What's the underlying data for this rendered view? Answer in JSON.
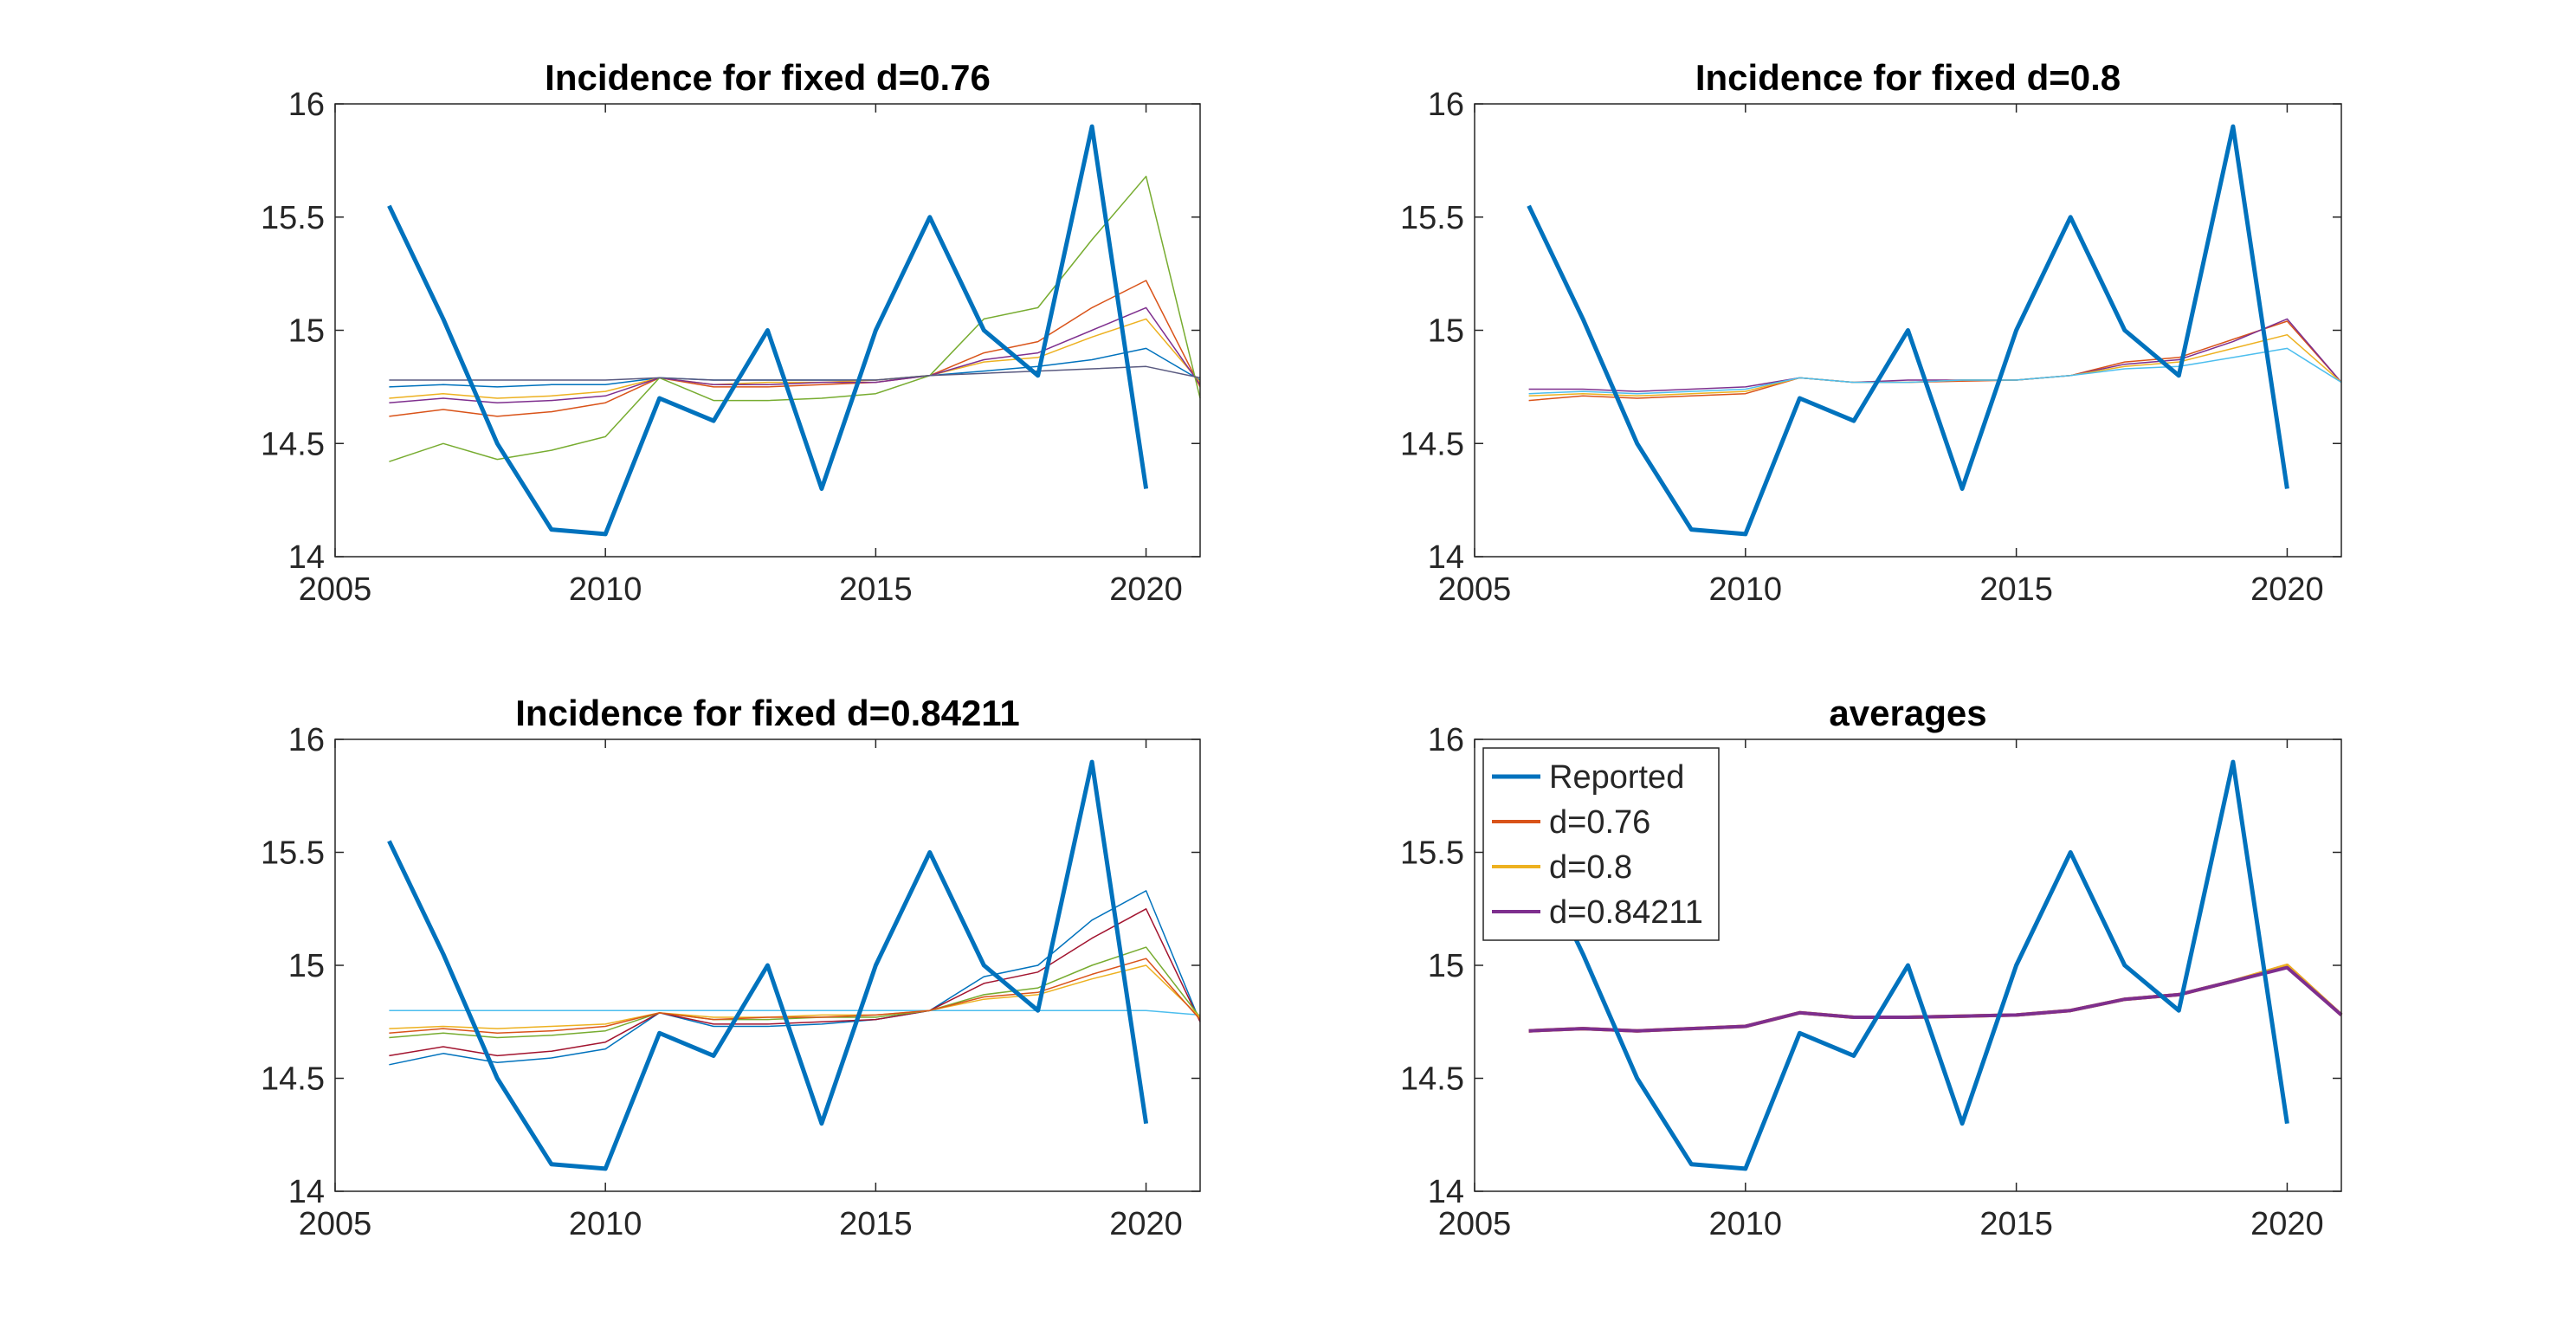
{
  "chart_data": [
    {
      "type": "line",
      "title": "Incidence for fixed d=0.76",
      "x": [
        2006,
        2007,
        2008,
        2009,
        2010,
        2011,
        2012,
        2013,
        2014,
        2015,
        2016,
        2017,
        2018,
        2019,
        2020,
        2021
      ],
      "xlim": [
        2005,
        2021
      ],
      "xticks": [
        2005,
        2010,
        2015,
        2020
      ],
      "ylim": [
        14,
        16
      ],
      "yticks": [
        14,
        14.5,
        15,
        15.5,
        16
      ],
      "series": [
        {
          "name": "Reported",
          "color": "#0072BD",
          "values": [
            15.55,
            15.05,
            14.5,
            14.12,
            14.1,
            14.7,
            14.6,
            15.0,
            14.3,
            15.0,
            15.5,
            15.0,
            14.8,
            15.9,
            14.3,
            null
          ]
        },
        {
          "color": "#0072BD",
          "values": [
            14.75,
            14.76,
            14.75,
            14.76,
            14.76,
            14.79,
            14.78,
            14.78,
            14.78,
            14.78,
            14.8,
            14.82,
            14.84,
            14.87,
            14.92,
            14.78
          ]
        },
        {
          "color": "#D95319",
          "values": [
            14.62,
            14.65,
            14.62,
            14.64,
            14.68,
            14.79,
            14.75,
            14.75,
            14.76,
            14.77,
            14.8,
            14.9,
            14.95,
            15.1,
            15.22,
            14.75
          ]
        },
        {
          "color": "#EDB120",
          "values": [
            14.7,
            14.72,
            14.7,
            14.71,
            14.73,
            14.79,
            14.76,
            14.77,
            14.77,
            14.78,
            14.8,
            14.86,
            14.88,
            14.97,
            15.05,
            14.77
          ]
        },
        {
          "color": "#7E2F8E",
          "values": [
            14.68,
            14.7,
            14.68,
            14.69,
            14.71,
            14.79,
            14.76,
            14.76,
            14.77,
            14.77,
            14.8,
            14.87,
            14.9,
            15.0,
            15.1,
            14.76
          ]
        },
        {
          "color": "#77AC30",
          "values": [
            14.42,
            14.5,
            14.43,
            14.47,
            14.53,
            14.79,
            14.69,
            14.69,
            14.7,
            14.72,
            14.8,
            15.05,
            15.1,
            15.4,
            15.68,
            14.7
          ]
        },
        {
          "color": "#5A5A80",
          "values": [
            14.78,
            14.78,
            14.78,
            14.78,
            14.78,
            14.79,
            14.78,
            14.78,
            14.78,
            14.78,
            14.8,
            14.81,
            14.82,
            14.83,
            14.84,
            14.79
          ]
        }
      ]
    },
    {
      "type": "line",
      "title": "Incidence for fixed d=0.8",
      "x": [
        2006,
        2007,
        2008,
        2009,
        2010,
        2011,
        2012,
        2013,
        2014,
        2015,
        2016,
        2017,
        2018,
        2019,
        2020,
        2021
      ],
      "xlim": [
        2005,
        2021
      ],
      "xticks": [
        2005,
        2010,
        2015,
        2020
      ],
      "ylim": [
        14,
        16
      ],
      "yticks": [
        14,
        14.5,
        15,
        15.5,
        16
      ],
      "series": [
        {
          "name": "Reported",
          "color": "#0072BD",
          "values": [
            15.55,
            15.05,
            14.5,
            14.12,
            14.1,
            14.7,
            14.6,
            15.0,
            14.3,
            15.0,
            15.5,
            15.0,
            14.8,
            15.9,
            14.3,
            null
          ]
        },
        {
          "color": "#D95319",
          "values": [
            14.69,
            14.71,
            14.7,
            14.71,
            14.72,
            14.79,
            14.77,
            14.77,
            14.775,
            14.78,
            14.8,
            14.86,
            14.88,
            14.96,
            15.04,
            14.77
          ]
        },
        {
          "color": "#7E2F8E",
          "values": [
            14.74,
            14.74,
            14.73,
            14.74,
            14.75,
            14.79,
            14.77,
            14.78,
            14.78,
            14.78,
            14.8,
            14.85,
            14.87,
            14.95,
            15.05,
            14.77
          ]
        },
        {
          "color": "#EDB120",
          "values": [
            14.71,
            14.72,
            14.71,
            14.72,
            14.73,
            14.79,
            14.77,
            14.77,
            14.78,
            14.78,
            14.8,
            14.84,
            14.86,
            14.92,
            14.98,
            14.77
          ]
        },
        {
          "color": "#4DBEEE",
          "values": [
            14.72,
            14.73,
            14.72,
            14.73,
            14.74,
            14.79,
            14.77,
            14.77,
            14.78,
            14.78,
            14.8,
            14.83,
            14.84,
            14.88,
            14.92,
            14.77
          ]
        }
      ]
    },
    {
      "type": "line",
      "title": "Incidence for fixed d=0.84211",
      "x": [
        2006,
        2007,
        2008,
        2009,
        2010,
        2011,
        2012,
        2013,
        2014,
        2015,
        2016,
        2017,
        2018,
        2019,
        2020,
        2021
      ],
      "xlim": [
        2005,
        2021
      ],
      "xticks": [
        2005,
        2010,
        2015,
        2020
      ],
      "ylim": [
        14,
        16
      ],
      "yticks": [
        14,
        14.5,
        15,
        15.5,
        16
      ],
      "series": [
        {
          "name": "Reported",
          "color": "#0072BD",
          "values": [
            15.55,
            15.05,
            14.5,
            14.12,
            14.1,
            14.7,
            14.6,
            15.0,
            14.3,
            15.0,
            15.5,
            15.0,
            14.8,
            15.9,
            14.3,
            null
          ]
        },
        {
          "color": "#4DBEEE",
          "values": [
            14.8,
            14.8,
            14.8,
            14.8,
            14.8,
            14.8,
            14.8,
            14.8,
            14.8,
            14.8,
            14.8,
            14.8,
            14.8,
            14.8,
            14.8,
            14.78
          ]
        },
        {
          "color": "#0072BD",
          "values": [
            14.56,
            14.61,
            14.57,
            14.59,
            14.63,
            14.79,
            14.73,
            14.73,
            14.74,
            14.76,
            14.8,
            14.95,
            15.0,
            15.2,
            15.33,
            14.75
          ]
        },
        {
          "color": "#A2142F",
          "values": [
            14.6,
            14.64,
            14.6,
            14.62,
            14.66,
            14.79,
            14.74,
            14.74,
            14.75,
            14.76,
            14.8,
            14.92,
            14.97,
            15.12,
            15.25,
            14.75
          ]
        },
        {
          "color": "#77AC30",
          "values": [
            14.68,
            14.7,
            14.68,
            14.69,
            14.71,
            14.79,
            14.76,
            14.76,
            14.77,
            14.77,
            14.8,
            14.87,
            14.9,
            15.0,
            15.08,
            14.77
          ]
        },
        {
          "color": "#EDB120",
          "values": [
            14.72,
            14.73,
            14.72,
            14.73,
            14.74,
            14.79,
            14.77,
            14.77,
            14.78,
            14.78,
            14.8,
            14.85,
            14.87,
            14.94,
            15.0,
            14.77
          ]
        },
        {
          "color": "#D95319",
          "values": [
            14.7,
            14.72,
            14.7,
            14.71,
            14.73,
            14.79,
            14.76,
            14.77,
            14.77,
            14.78,
            14.8,
            14.86,
            14.88,
            14.96,
            15.03,
            14.76
          ]
        }
      ]
    },
    {
      "type": "line",
      "title": "averages",
      "legend": "northwest",
      "x": [
        2006,
        2007,
        2008,
        2009,
        2010,
        2011,
        2012,
        2013,
        2014,
        2015,
        2016,
        2017,
        2018,
        2019,
        2020,
        2021
      ],
      "xlim": [
        2005,
        2021
      ],
      "xticks": [
        2005,
        2010,
        2015,
        2020
      ],
      "ylim": [
        14,
        16
      ],
      "yticks": [
        14,
        14.5,
        15,
        15.5,
        16
      ],
      "series": [
        {
          "name": "Reported",
          "color": "#0072BD",
          "values": [
            15.55,
            15.05,
            14.5,
            14.12,
            14.1,
            14.7,
            14.6,
            15.0,
            14.3,
            15.0,
            15.5,
            15.0,
            14.8,
            15.9,
            14.3,
            null
          ]
        },
        {
          "name": "d=0.76",
          "color": "#D95319",
          "values": [
            14.71,
            14.72,
            14.71,
            14.72,
            14.73,
            14.79,
            14.77,
            14.77,
            14.775,
            14.78,
            14.8,
            14.85,
            14.87,
            14.93,
            15.0,
            14.78
          ]
        },
        {
          "name": "d=0.8",
          "color": "#EDB120",
          "values": [
            14.71,
            14.72,
            14.71,
            14.72,
            14.73,
            14.79,
            14.77,
            14.77,
            14.775,
            14.78,
            14.8,
            14.85,
            14.87,
            14.93,
            15.0,
            14.78
          ]
        },
        {
          "name": "d=0.84211",
          "color": "#7E2F8E",
          "values": [
            14.71,
            14.72,
            14.71,
            14.72,
            14.73,
            14.79,
            14.77,
            14.77,
            14.775,
            14.78,
            14.8,
            14.85,
            14.87,
            14.93,
            14.99,
            14.78
          ]
        }
      ]
    }
  ]
}
